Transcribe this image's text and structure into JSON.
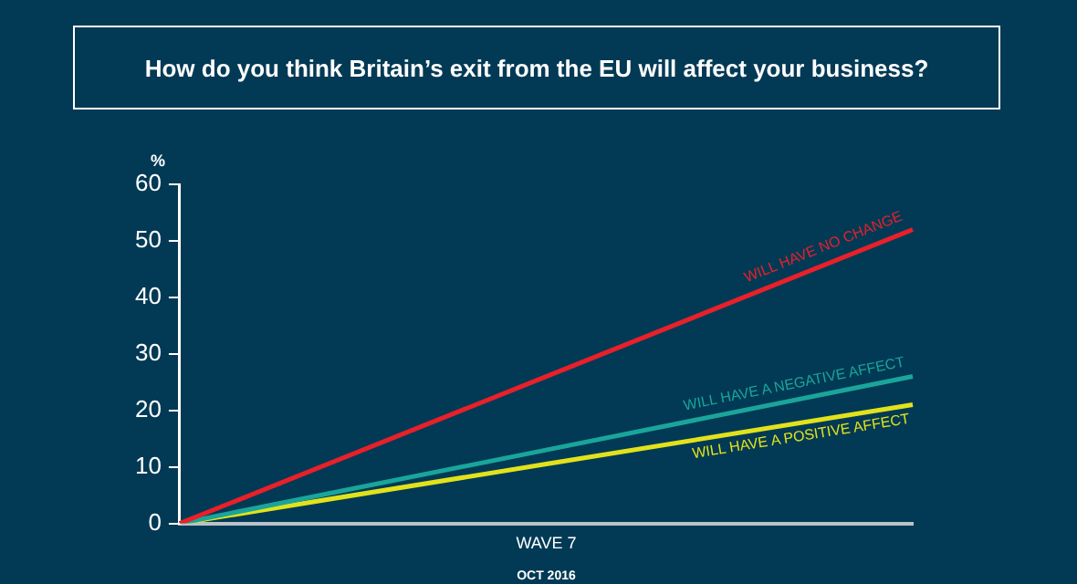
{
  "chart_data": {
    "type": "line",
    "title": "How do you think Britain’s exit from the EU will affect your business?",
    "ylabel": "%",
    "xlabel": "OCT 2016",
    "categories": [
      null,
      "WAVE 7",
      null
    ],
    "ylim": [
      0,
      60
    ],
    "yticks": [
      0,
      10,
      20,
      30,
      40,
      50,
      60
    ],
    "grid": false,
    "legend": false,
    "marker": "none",
    "line_style": "solid",
    "series": [
      {
        "name": "WILL HAVE NO CHANGE",
        "color": "#e8202a",
        "values": [
          0,
          26,
          52
        ]
      },
      {
        "name": "WILL HAVE A NEGATIVE AFFECT",
        "color": "#1aa59a",
        "values": [
          0,
          13,
          26
        ]
      },
      {
        "name": "WILL HAVE A POSITIVE AFFECT",
        "color": "#e2e21c",
        "values": [
          0,
          10.5,
          21
        ]
      }
    ]
  }
}
